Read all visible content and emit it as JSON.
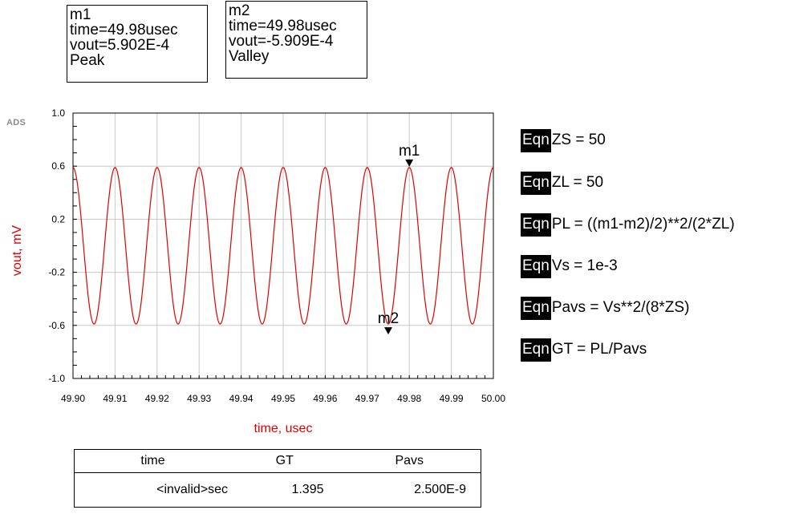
{
  "logo": "ADS",
  "markers": {
    "m1": {
      "name": "m1",
      "time": "time=49.98usec",
      "vout": "vout=5.902E-4",
      "kind": "Peak"
    },
    "m2": {
      "name": "m2",
      "time": "time=49.98usec",
      "vout": "vout=-5.909E-4",
      "kind": "Valley"
    }
  },
  "chart_data": {
    "type": "line",
    "xlabel": "time, usec",
    "ylabel": "vout, mV",
    "xlim": [
      49.9,
      50.0
    ],
    "ylim": [
      -1.0,
      1.0
    ],
    "xticks": [
      "49.90",
      "49.91",
      "49.92",
      "49.93",
      "49.94",
      "49.95",
      "49.96",
      "49.97",
      "49.98",
      "49.99",
      "50.00"
    ],
    "yticks": [
      "1.0",
      "0.6",
      "0.2",
      "-0.2",
      "-0.6",
      "-1.0"
    ],
    "grid": true,
    "series": [
      {
        "color": "#e00000",
        "amplitude": 0.59,
        "frequency_MHz": 100,
        "peak_time": 49.98
      }
    ],
    "marker_labels": [
      {
        "label": "m1",
        "x": 49.98,
        "y": 0.59
      },
      {
        "label": "m2",
        "x": 49.975,
        "y": -0.59
      }
    ]
  },
  "equations": [
    {
      "tag": "Eqn",
      "text": "ZS = 50"
    },
    {
      "tag": "Eqn",
      "text": "ZL = 50"
    },
    {
      "tag": "Eqn",
      "text": "PL = ((m1-m2)/2)**2/(2*ZL)"
    },
    {
      "tag": "Eqn",
      "text": "Vs = 1e-3"
    },
    {
      "tag": "Eqn",
      "text": "Pavs = Vs**2/(8*ZS)"
    },
    {
      "tag": "Eqn",
      "text": "GT = PL/Pavs"
    }
  ],
  "table": {
    "headers": [
      "time",
      "GT",
      "Pavs"
    ],
    "rows": [
      [
        "<invalid>sec",
        "1.395",
        "2.500E-9"
      ]
    ]
  }
}
